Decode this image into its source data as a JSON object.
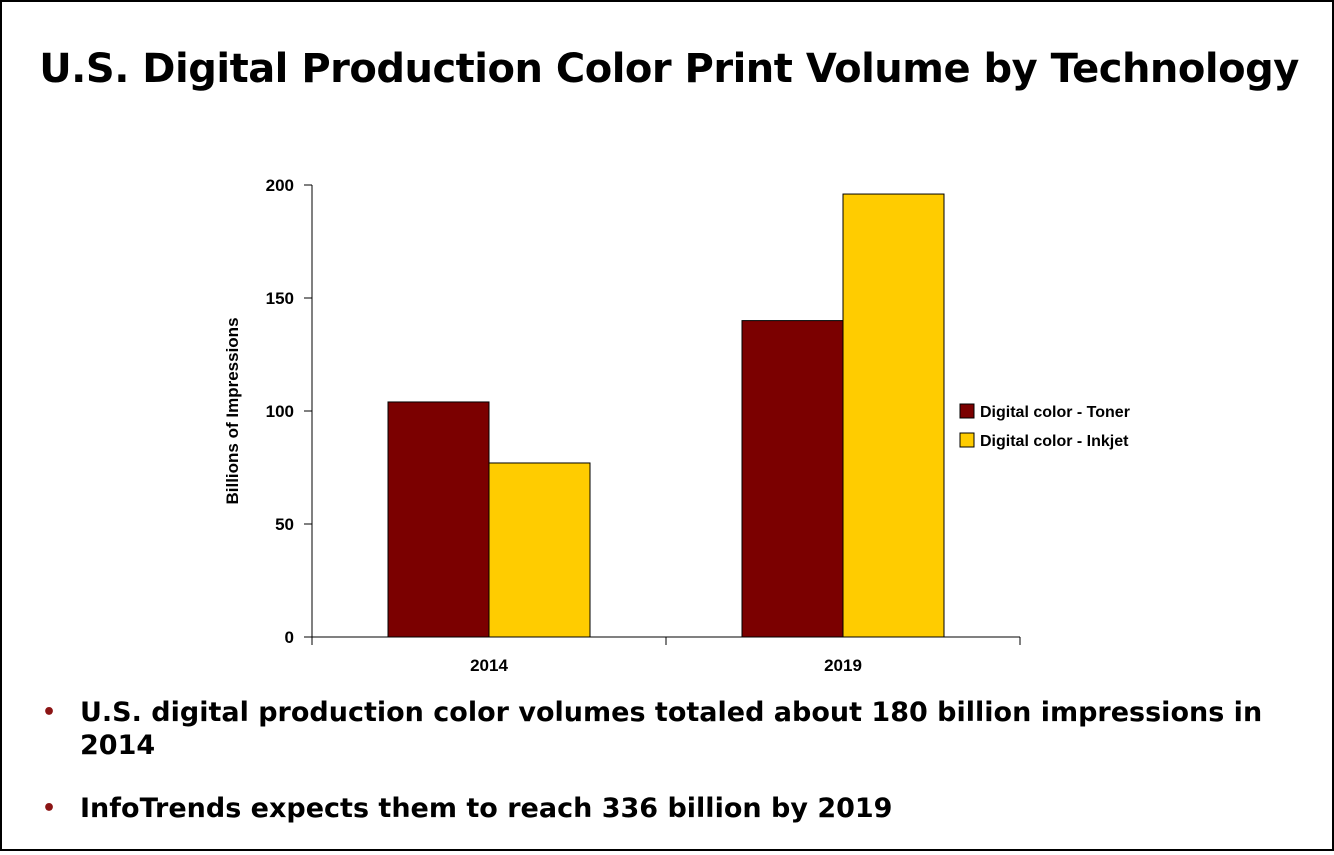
{
  "title": "U.S. Digital Production Color Print Volume by Technology",
  "colors": {
    "toner": "#7b0000",
    "inkjet": "#ffcc00",
    "bullet": "#8b1414"
  },
  "chart_data": {
    "type": "bar",
    "categories": [
      "2014",
      "2019"
    ],
    "series": [
      {
        "name": "Digital color - Toner",
        "values": [
          104,
          140
        ]
      },
      {
        "name": "Digital color - Inkjet",
        "values": [
          77,
          196
        ]
      }
    ],
    "ylabel": "Billions of Impressions",
    "xlabel": "",
    "ylim": [
      0,
      200
    ],
    "yticks": [
      0,
      50,
      100,
      150,
      200
    ],
    "legend": "right",
    "grid": false
  },
  "bullets": [
    "U.S. digital production color volumes totaled about 180 billion impressions in 2014",
    "InfoTrends expects them to reach 336 billion by 2019"
  ]
}
